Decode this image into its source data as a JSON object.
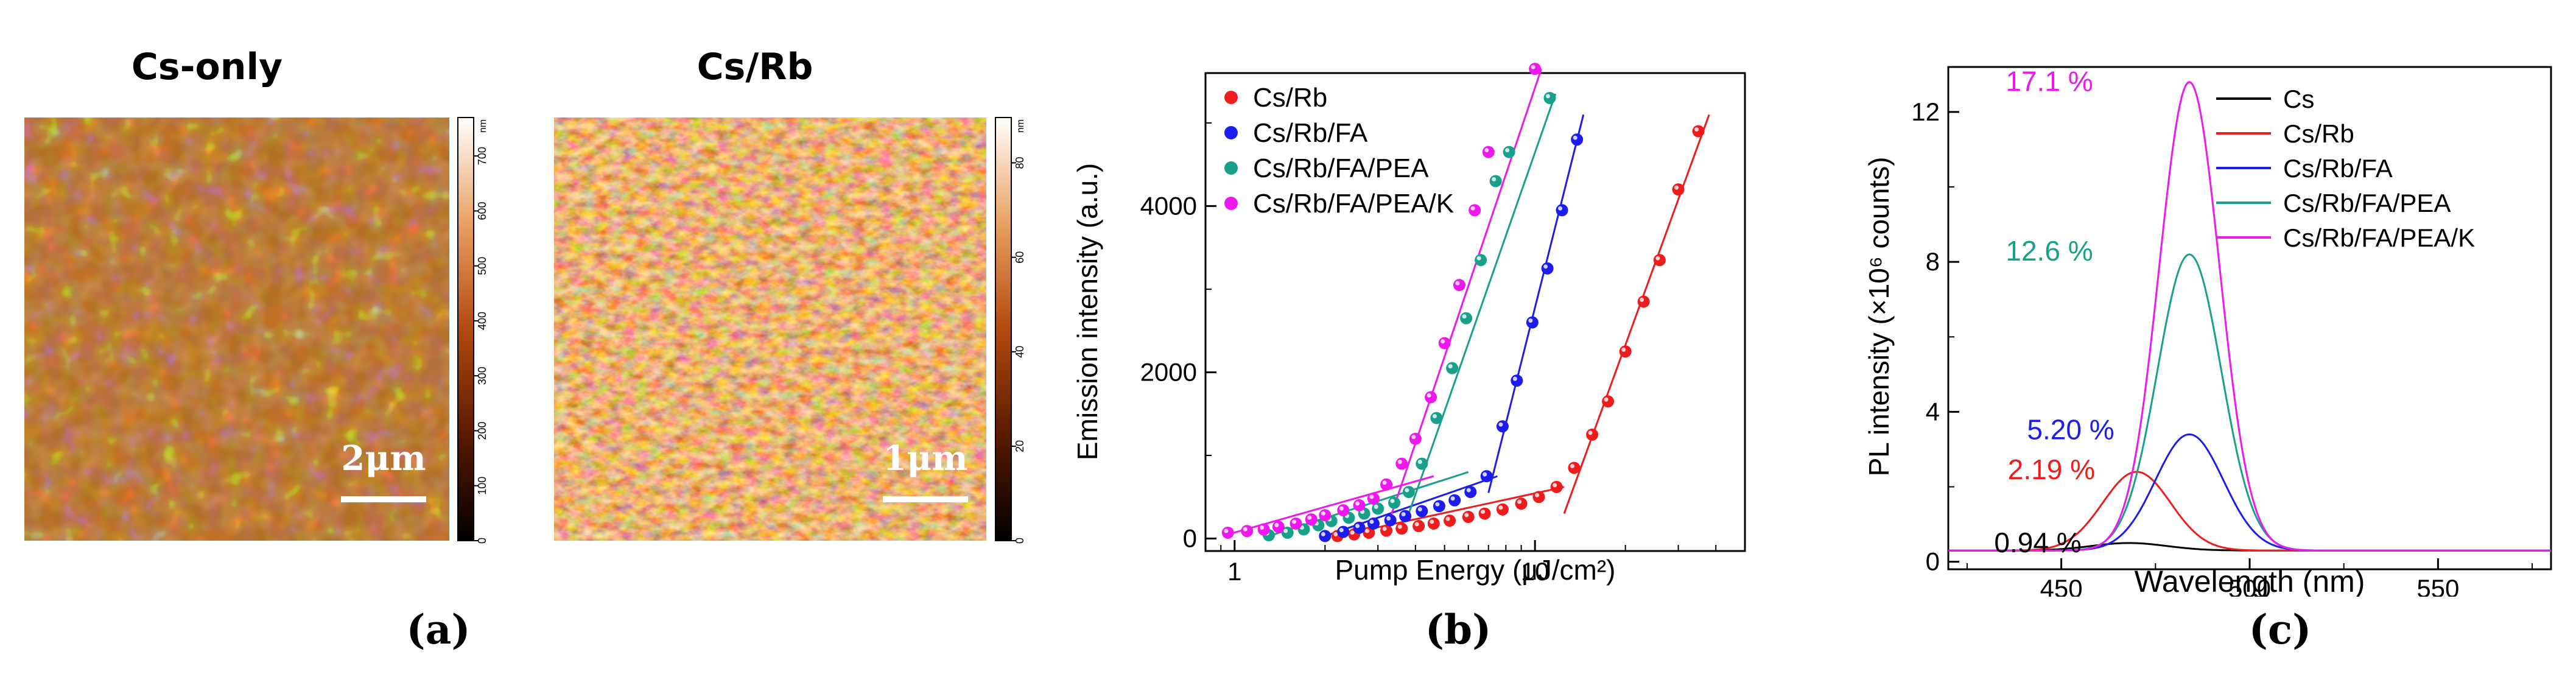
{
  "panels": {
    "a_label": "(a)",
    "b_label": "(b)",
    "c_label": "(c)"
  },
  "afm": {
    "left": {
      "title": "Cs-only",
      "scale_bar": "2μm",
      "colorbar_unit": "nm",
      "colorbar_ticks": [
        "0",
        "100",
        "200",
        "300",
        "400",
        "500",
        "600",
        "700"
      ]
    },
    "right": {
      "title": "Cs/Rb",
      "scale_bar": "1μm",
      "colorbar_unit": "nm",
      "colorbar_ticks": [
        "0",
        "20",
        "40",
        "60",
        "80"
      ]
    }
  },
  "chart_data": [
    {
      "type": "scatter",
      "title": "",
      "xlabel": "Pump Energy (μJ/cm²)",
      "ylabel": "Emission intensity (a.u.)",
      "xscale": "log",
      "xlim": [
        0.8,
        50
      ],
      "ylim": [
        -150,
        5600
      ],
      "xticks": [
        1,
        10
      ],
      "xtick_labels": [
        "1",
        "10"
      ],
      "yticks": [
        0,
        2000,
        4000
      ],
      "ytick_labels": [
        "0",
        "2000",
        "4000"
      ],
      "legend_position": "top-left",
      "series": [
        {
          "name": "Cs/Rb",
          "color": "#ee1c1c",
          "points": [
            [
              2.2,
              30
            ],
            [
              2.5,
              50
            ],
            [
              2.8,
              70
            ],
            [
              3.2,
              95
            ],
            [
              3.6,
              120
            ],
            [
              4.1,
              150
            ],
            [
              4.6,
              180
            ],
            [
              5.2,
              215
            ],
            [
              6.0,
              260
            ],
            [
              6.8,
              300
            ],
            [
              7.8,
              350
            ],
            [
              9.0,
              420
            ],
            [
              10.3,
              500
            ],
            [
              11.8,
              620
            ],
            [
              13.5,
              850
            ],
            [
              15.5,
              1250
            ],
            [
              17.5,
              1650
            ],
            [
              20,
              2250
            ],
            [
              23,
              2850
            ],
            [
              26,
              3350
            ],
            [
              30,
              4200
            ],
            [
              35,
              4900
            ]
          ],
          "fit_lines": [
            [
              [
                2.2,
                30
              ],
              [
                12.5,
                620
              ]
            ],
            [
              [
                12.5,
                300
              ],
              [
                38,
                5100
              ]
            ]
          ]
        },
        {
          "name": "Cs/Rb/FA",
          "color": "#1c1cee",
          "points": [
            [
              2.0,
              30
            ],
            [
              2.3,
              80
            ],
            [
              2.6,
              130
            ],
            [
              2.9,
              180
            ],
            [
              3.3,
              220
            ],
            [
              3.7,
              270
            ],
            [
              4.2,
              330
            ],
            [
              4.8,
              390
            ],
            [
              5.4,
              460
            ],
            [
              6.1,
              560
            ],
            [
              6.9,
              750
            ],
            [
              7.8,
              1350
            ],
            [
              8.7,
              1900
            ],
            [
              9.8,
              2600
            ],
            [
              11.0,
              3250
            ],
            [
              12.3,
              3950
            ],
            [
              13.8,
              4800
            ]
          ],
          "fit_lines": [
            [
              [
                2.0,
                30
              ],
              [
                7.5,
                750
              ]
            ],
            [
              [
                7.0,
                550
              ],
              [
                14.5,
                5100
              ]
            ]
          ]
        },
        {
          "name": "Cs/Rb/FA/PEA",
          "color": "#18a08a",
          "points": [
            [
              1.3,
              40
            ],
            [
              1.5,
              70
            ],
            [
              1.7,
              110
            ],
            [
              1.9,
              160
            ],
            [
              2.1,
              210
            ],
            [
              2.4,
              250
            ],
            [
              2.7,
              300
            ],
            [
              3.0,
              360
            ],
            [
              3.4,
              430
            ],
            [
              3.8,
              560
            ],
            [
              4.2,
              900
            ],
            [
              4.7,
              1450
            ],
            [
              5.3,
              2050
            ],
            [
              5.9,
              2650
            ],
            [
              6.6,
              3350
            ],
            [
              7.4,
              4300
            ],
            [
              8.2,
              4650
            ],
            [
              11.2,
              5300
            ]
          ],
          "fit_lines": [
            [
              [
                1.3,
                30
              ],
              [
                6.0,
                800
              ]
            ],
            [
              [
                3.8,
                300
              ],
              [
                11.7,
                5350
              ]
            ]
          ]
        },
        {
          "name": "Cs/Rb/FA/PEA/K",
          "color": "#ee18ee",
          "points": [
            [
              0.95,
              70
            ],
            [
              1.1,
              90
            ],
            [
              1.25,
              110
            ],
            [
              1.4,
              140
            ],
            [
              1.6,
              180
            ],
            [
              1.8,
              230
            ],
            [
              2.0,
              280
            ],
            [
              2.3,
              340
            ],
            [
              2.6,
              400
            ],
            [
              2.9,
              480
            ],
            [
              3.2,
              650
            ],
            [
              3.6,
              900
            ],
            [
              4.0,
              1200
            ],
            [
              4.5,
              1700
            ],
            [
              5.0,
              2350
            ],
            [
              5.6,
              3050
            ],
            [
              6.3,
              3950
            ],
            [
              7.0,
              4650
            ],
            [
              10.0,
              5650
            ]
          ],
          "fit_lines": [
            [
              [
                0.95,
                50
              ],
              [
                4.6,
                750
              ]
            ],
            [
              [
                3.3,
                250
              ],
              [
                10.5,
                5650
              ]
            ]
          ]
        }
      ]
    },
    {
      "type": "line",
      "title": "",
      "xlabel": "Wavelength (nm)",
      "ylabel": "PL intensity (×10⁶ counts)",
      "xlim": [
        420,
        580
      ],
      "ylim": [
        -0.2,
        13.2
      ],
      "xticks": [
        450,
        500,
        550
      ],
      "xtick_labels": [
        "450",
        "500",
        "550"
      ],
      "yticks": [
        0,
        4,
        8,
        12
      ],
      "ytick_labels": [
        "0",
        "4",
        "8",
        "12"
      ],
      "legend_position": "top-right",
      "series": [
        {
          "name": "Cs",
          "color": "#000000",
          "peak_nm": 468,
          "peak_value": 0.5,
          "sigma": 10,
          "baseline": 0.3,
          "annotation": "0.94 %",
          "annotation_color": "#000000"
        },
        {
          "name": "Cs/Rb",
          "color": "#ee1c1c",
          "peak_nm": 470,
          "peak_value": 2.4,
          "sigma": 9,
          "baseline": 0.3,
          "annotation": "2.19 %",
          "annotation_color": "#ee1c1c"
        },
        {
          "name": "Cs/Rb/FA",
          "color": "#1c1cee",
          "peak_nm": 484,
          "peak_value": 3.4,
          "sigma": 9,
          "baseline": 0.3,
          "annotation": "5.20 %",
          "annotation_color": "#1c1cee"
        },
        {
          "name": "Cs/Rb/FA/PEA",
          "color": "#18a08a",
          "peak_nm": 484,
          "peak_value": 8.2,
          "sigma": 8.5,
          "baseline": 0.3,
          "annotation": "12.6 %",
          "annotation_color": "#18a08a"
        },
        {
          "name": "Cs/Rb/FA/PEA/K",
          "color": "#ee18ee",
          "peak_nm": 484,
          "peak_value": 12.8,
          "sigma": 8,
          "baseline": 0.3,
          "annotation": "17.1 %",
          "annotation_color": "#ee18ee"
        }
      ]
    }
  ]
}
